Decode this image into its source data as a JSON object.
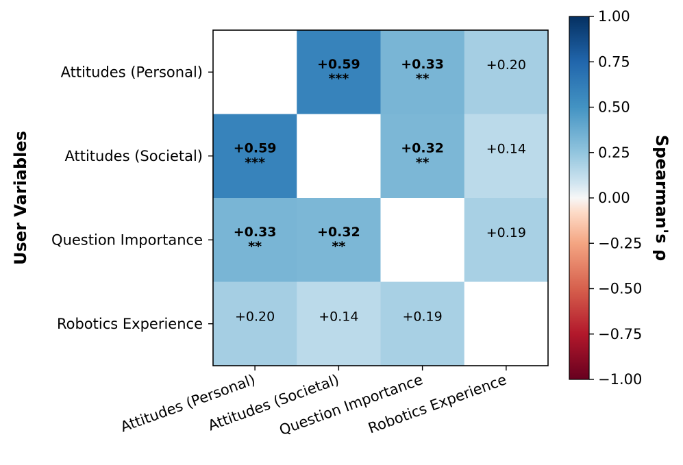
{
  "chart_data": {
    "type": "heatmap",
    "title": "",
    "ylabel": "User Variables",
    "xlabel": "",
    "rows": [
      "Attitudes (Personal)",
      "Attitudes (Societal)",
      "Question Importance",
      "Robotics Experience"
    ],
    "columns": [
      "Attitudes (Personal)",
      "Attitudes (Societal)",
      "Question Importance",
      "Robotics Experience"
    ],
    "values": [
      [
        null,
        0.59,
        0.33,
        0.2
      ],
      [
        0.59,
        null,
        0.32,
        0.14
      ],
      [
        0.33,
        0.32,
        null,
        0.19
      ],
      [
        0.2,
        0.14,
        0.19,
        null
      ]
    ],
    "labels": [
      [
        "",
        "+0.59",
        "+0.33",
        "+0.20"
      ],
      [
        "+0.59",
        "",
        "+0.32",
        "+0.14"
      ],
      [
        "+0.33",
        "+0.32",
        "",
        "+0.19"
      ],
      [
        "+0.20",
        "+0.14",
        "+0.19",
        ""
      ]
    ],
    "significance": [
      [
        "",
        "***",
        "**",
        ""
      ],
      [
        "***",
        "",
        "**",
        ""
      ],
      [
        "**",
        "**",
        "",
        ""
      ],
      [
        "",
        "",
        "",
        ""
      ]
    ],
    "colorbar": {
      "label": "Spearman's  ρ",
      "range": [
        -1.0,
        1.0
      ],
      "ticks": [
        1.0,
        0.75,
        0.5,
        0.25,
        0.0,
        -0.25,
        -0.5,
        -0.75,
        -1.0
      ],
      "tick_labels": [
        "1.00",
        "0.75",
        "0.50",
        "0.25",
        "0.00",
        "−0.25",
        "−0.50",
        "−0.75",
        "−1.00"
      ],
      "colormap": "RdBu"
    }
  }
}
